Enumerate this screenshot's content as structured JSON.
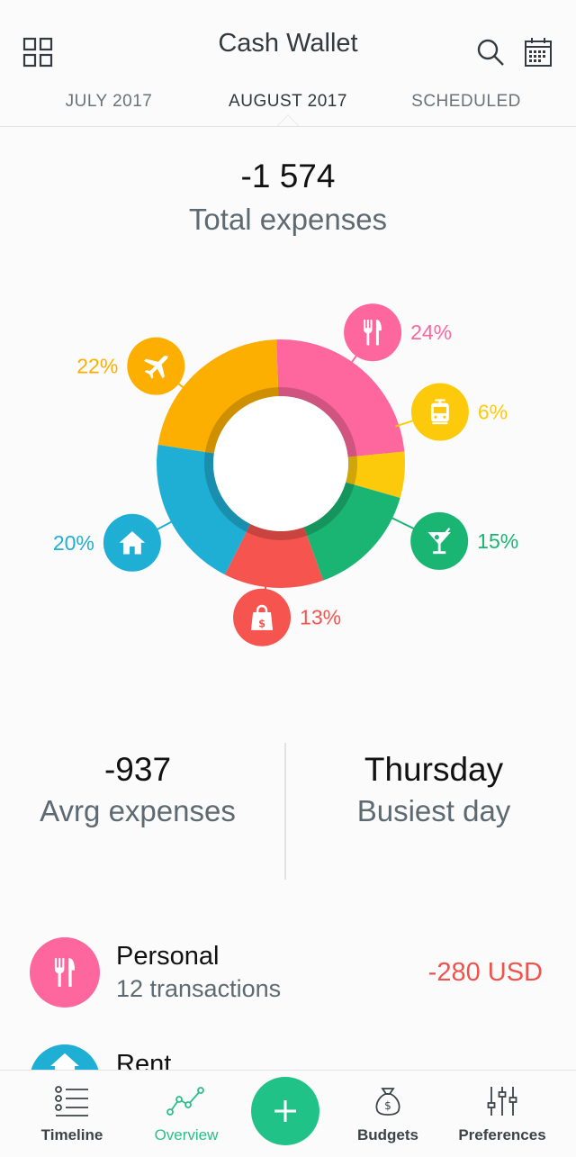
{
  "header": {
    "title": "Cash Wallet",
    "tabs": [
      {
        "label": "JULY 2017"
      },
      {
        "label": "AUGUST 2017"
      },
      {
        "label": "SCHEDULED"
      }
    ]
  },
  "summary": {
    "total_value": "-1 574",
    "total_label": "Total expenses"
  },
  "chart_data": {
    "type": "pie",
    "title": "",
    "slices": [
      {
        "icon": "fork-knife-icon",
        "percent": 24,
        "label": "24%",
        "color": "#fd679d"
      },
      {
        "icon": "tram-icon",
        "percent": 6,
        "label": "6%",
        "color": "#fdca0b"
      },
      {
        "icon": "cocktail-icon",
        "percent": 15,
        "label": "15%",
        "color": "#1bb573"
      },
      {
        "icon": "shopping-bag-icon",
        "percent": 13,
        "label": "13%",
        "color": "#f6544e"
      },
      {
        "icon": "house-icon",
        "percent": 20,
        "label": "20%",
        "color": "#1fafd4"
      },
      {
        "icon": "airplane-icon",
        "percent": 22,
        "label": "22%",
        "color": "#fcaf00"
      }
    ]
  },
  "stats": {
    "avg_value": "-937",
    "avg_label": "Avrg expenses",
    "busiest_value": "Thursday",
    "busiest_label": "Busiest day"
  },
  "list": {
    "items": [
      {
        "name": "Personal",
        "sub": "12 transactions",
        "amount": "-280 USD",
        "icon": "fork-knife-icon",
        "color": "#fd679d"
      },
      {
        "name": "Rent",
        "icon": "house-icon",
        "color": "#1fafd4"
      }
    ]
  },
  "nav": {
    "items": [
      {
        "label": "Timeline",
        "icon": "timeline-icon"
      },
      {
        "label": "Overview",
        "icon": "overview-chart-icon"
      },
      {
        "label": "Budgets",
        "icon": "money-bag-icon"
      },
      {
        "label": "Preferences",
        "icon": "sliders-icon"
      }
    ],
    "active_color": "#2bbf8a",
    "fab_color": "#21c288"
  }
}
